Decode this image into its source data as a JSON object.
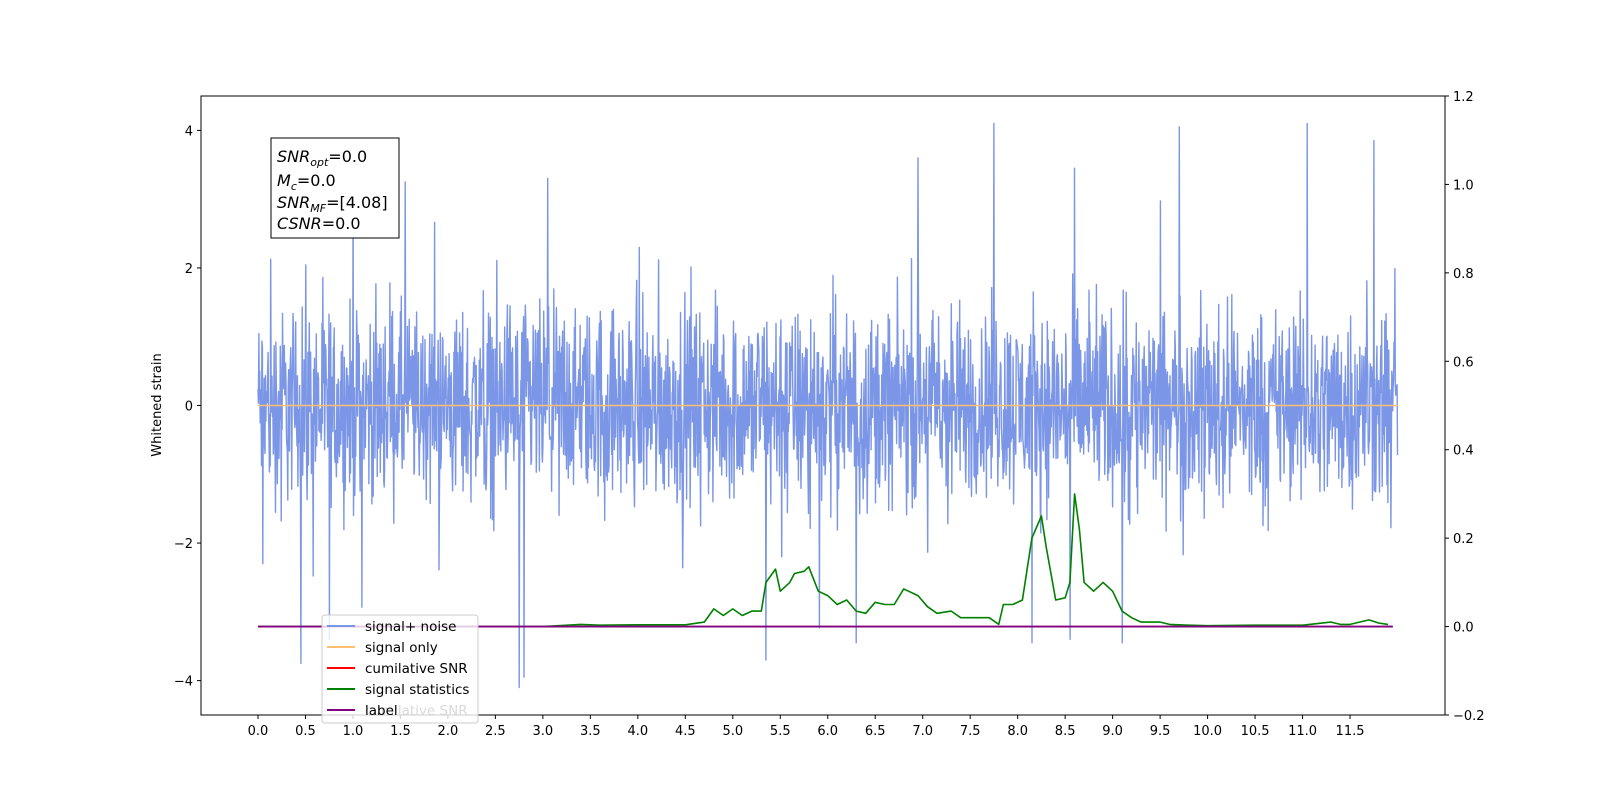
{
  "chart_data": {
    "type": "line",
    "title": "",
    "xlabel": "",
    "ylabel": "Whitened strain",
    "xlim": [
      -0.6,
      12.5
    ],
    "ylim": [
      -4.5,
      4.5
    ],
    "y2lim": [
      -0.2,
      1.2
    ],
    "xticks": [
      "0.0",
      "0.5",
      "1.0",
      "1.5",
      "2.0",
      "2.5",
      "3.0",
      "3.5",
      "4.0",
      "4.5",
      "5.0",
      "5.5",
      "6.0",
      "6.5",
      "7.0",
      "7.5",
      "8.0",
      "8.5",
      "9.0",
      "9.5",
      "10.0",
      "10.5",
      "11.0",
      "11.5"
    ],
    "yticks": [
      "4",
      "2",
      "0",
      "−2",
      "−4"
    ],
    "y2ticks": [
      "1.2",
      "1.0",
      "0.8",
      "0.6",
      "0.4",
      "0.2",
      "0.0",
      "−0.2"
    ],
    "grid": false,
    "legend_position": "lower-left",
    "annotation": {
      "lines": [
        {
          "name": "SNR",
          "sub": "opt",
          "value": "=0.0"
        },
        {
          "name": "M",
          "sub": "c",
          "value": "=0.0"
        },
        {
          "name": "SNR",
          "sub": "MF",
          "value": "=[4.08]"
        },
        {
          "name": "CSNR",
          "sub": "",
          "value": "=0.0"
        }
      ]
    },
    "series": [
      {
        "name": "signal+ noise",
        "color": "#7b96e6",
        "axis": "left",
        "kind": "noise",
        "x_range": [
          0.0,
          12.0
        ],
        "typical_envelope": [
          -1.5,
          1.5
        ],
        "peaks": [
          [
            0.05,
            2.0
          ],
          [
            0.05,
            -2.3
          ],
          [
            0.45,
            -3.75
          ],
          [
            0.75,
            -3.4
          ],
          [
            1.0,
            3.3
          ],
          [
            1.55,
            3.25
          ],
          [
            2.75,
            -4.1
          ],
          [
            2.8,
            -3.95
          ],
          [
            3.05,
            3.3
          ],
          [
            5.35,
            -3.7
          ],
          [
            6.3,
            -3.45
          ],
          [
            6.95,
            3.6
          ],
          [
            7.75,
            4.1
          ],
          [
            8.15,
            -3.45
          ],
          [
            8.55,
            -3.4
          ],
          [
            8.6,
            3.45
          ],
          [
            9.1,
            -3.45
          ],
          [
            9.7,
            4.05
          ],
          [
            11.05,
            4.1
          ],
          [
            11.75,
            3.85
          ]
        ]
      },
      {
        "name": "signal only",
        "color": "#ffbe72",
        "axis": "left",
        "constant": 0.0
      },
      {
        "name": "cumilative SNR",
        "color": "#ff0000",
        "axis": "right",
        "constant": 0.0
      },
      {
        "name": "signal statistics",
        "color": "#008000",
        "axis": "right",
        "x": [
          0.0,
          3.0,
          3.4,
          3.6,
          4.0,
          4.5,
          4.7,
          4.8,
          4.9,
          5.0,
          5.1,
          5.2,
          5.3,
          5.35,
          5.45,
          5.5,
          5.6,
          5.65,
          5.75,
          5.8,
          5.9,
          6.0,
          6.1,
          6.2,
          6.3,
          6.4,
          6.5,
          6.6,
          6.7,
          6.8,
          6.85,
          6.95,
          7.05,
          7.15,
          7.3,
          7.4,
          7.5,
          7.6,
          7.7,
          7.8,
          7.85,
          7.95,
          8.05,
          8.15,
          8.25,
          8.3,
          8.4,
          8.5,
          8.55,
          8.6,
          8.65,
          8.7,
          8.8,
          8.9,
          9.0,
          9.1,
          9.2,
          9.3,
          9.4,
          9.5,
          9.6,
          9.8,
          10.0,
          10.5,
          11.0,
          11.3,
          11.4,
          11.5,
          11.6,
          11.7,
          11.8,
          11.9
        ],
        "y": [
          0.0,
          0.0,
          0.005,
          0.003,
          0.004,
          0.004,
          0.01,
          0.04,
          0.025,
          0.04,
          0.025,
          0.035,
          0.035,
          0.1,
          0.13,
          0.08,
          0.1,
          0.12,
          0.125,
          0.135,
          0.08,
          0.07,
          0.05,
          0.06,
          0.035,
          0.03,
          0.055,
          0.05,
          0.05,
          0.085,
          0.08,
          0.07,
          0.045,
          0.03,
          0.035,
          0.02,
          0.02,
          0.02,
          0.02,
          0.005,
          0.05,
          0.05,
          0.06,
          0.2,
          0.25,
          0.18,
          0.06,
          0.065,
          0.1,
          0.3,
          0.22,
          0.1,
          0.08,
          0.1,
          0.08,
          0.035,
          0.02,
          0.01,
          0.01,
          0.01,
          0.005,
          0.003,
          0.002,
          0.003,
          0.003,
          0.01,
          0.005,
          0.005,
          0.01,
          0.015,
          0.008,
          0.005
        ]
      },
      {
        "name": "label",
        "color": "#800080",
        "axis": "right",
        "constant": 0.0
      }
    ],
    "legend_entries": [
      "signal+ noise",
      "signal only",
      "cumilative SNR",
      "signal statistics",
      "label"
    ],
    "legend_overlay_text": "cumilative SNR"
  }
}
